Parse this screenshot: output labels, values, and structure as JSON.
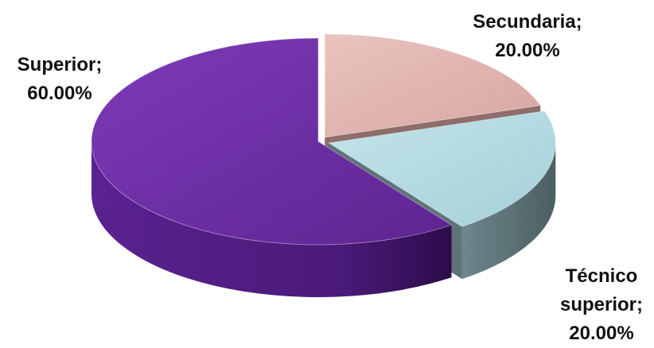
{
  "chart_data": {
    "type": "pie",
    "title": "",
    "slices": [
      {
        "label": "Secundaria",
        "value": 20.0,
        "display": [
          "Secundaria;",
          "20.00%"
        ],
        "color": "#e2b4b0",
        "side": "#8e6d6a",
        "exploded": true
      },
      {
        "label": "Técnico superior",
        "value": 20.0,
        "display": [
          "Técnico",
          "superior;",
          "20.00%"
        ],
        "color": "#b5dce4",
        "side": "#5f7478",
        "exploded": true
      },
      {
        "label": "Superior",
        "value": 60.0,
        "display": [
          "Superior;",
          "60.00%"
        ],
        "color": "#6e2ea6",
        "side": "#46196e",
        "exploded": false
      }
    ],
    "unit": "%",
    "style": "3d-exploded"
  }
}
